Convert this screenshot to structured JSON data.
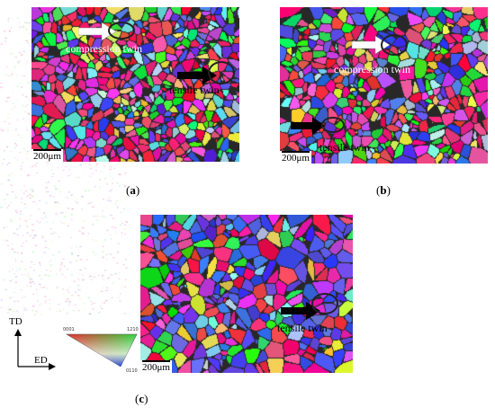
{
  "figure": {
    "panels": [
      {
        "id": "a",
        "label_prefix": "(",
        "label_letter": "a",
        "label_suffix": ")",
        "scale_bar": "200μm",
        "annotations": [
          {
            "text": "compression twin",
            "color": "white"
          },
          {
            "text": "tensile twin",
            "color": "black"
          }
        ]
      },
      {
        "id": "b",
        "label_prefix": "(",
        "label_letter": "b",
        "label_suffix": ")",
        "scale_bar": "200μm",
        "annotations": [
          {
            "text": "compression twin",
            "color": "white"
          },
          {
            "text": "tensile twin",
            "color": "black"
          }
        ]
      },
      {
        "id": "c",
        "label_prefix": "(",
        "label_letter": "c",
        "label_suffix": ")",
        "scale_bar": "200μm",
        "annotations": [
          {
            "text": "tensile twin",
            "color": "black"
          }
        ]
      }
    ],
    "axes": {
      "vertical": "TD",
      "horizontal": "ED"
    },
    "ipf_legend": {
      "corners": [
        "0001",
        "1210",
        "0110"
      ]
    },
    "colors": {
      "ipf_red": "#e8262a",
      "ipf_green": "#2fd23c",
      "ipf_blue": "#2235e0",
      "twin_ring": "#222222"
    }
  }
}
